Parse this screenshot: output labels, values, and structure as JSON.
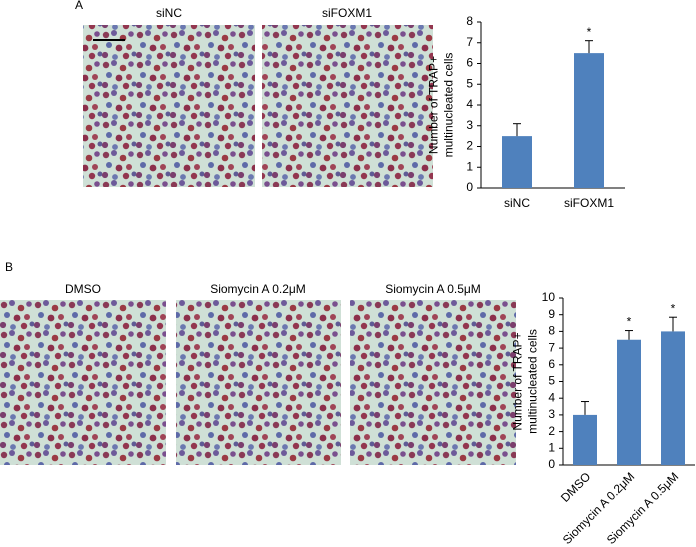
{
  "figure": {
    "panels": [
      {
        "label": "A",
        "images": [
          "siNC",
          "siFOXM1"
        ]
      },
      {
        "label": "B",
        "images": [
          "DMSO",
          "Siomycin A 0.2μM",
          "Siomycin A 0.5μM"
        ]
      }
    ]
  },
  "chart_data": [
    {
      "type": "bar",
      "y_label": [
        "Number of TRAP+",
        "multinucleated cells"
      ],
      "categories": [
        "siNC",
        "siFOXM1"
      ],
      "values": [
        2.5,
        6.5
      ],
      "errors": [
        0.6,
        0.6
      ],
      "significance": [
        null,
        "*"
      ],
      "color": "#4f81bd",
      "ylim": [
        0,
        8
      ],
      "yticks": [
        0,
        1,
        2,
        3,
        4,
        5,
        6,
        7,
        8
      ],
      "rotate_labels": false
    },
    {
      "type": "bar",
      "y_label": [
        "Number of TRAP+",
        "multinucleated cells"
      ],
      "categories": [
        "DMSO",
        "Siomycin A 0.2μM",
        "Siomycin A 0.5μM"
      ],
      "values": [
        3,
        7.5,
        8
      ],
      "errors": [
        0.8,
        0.55,
        0.85
      ],
      "significance": [
        null,
        "*",
        "*"
      ],
      "color": "#4f81bd",
      "ylim": [
        0,
        10
      ],
      "yticks": [
        0,
        1,
        2,
        3,
        4,
        5,
        6,
        7,
        8,
        9,
        10
      ],
      "rotate_labels": true
    }
  ]
}
